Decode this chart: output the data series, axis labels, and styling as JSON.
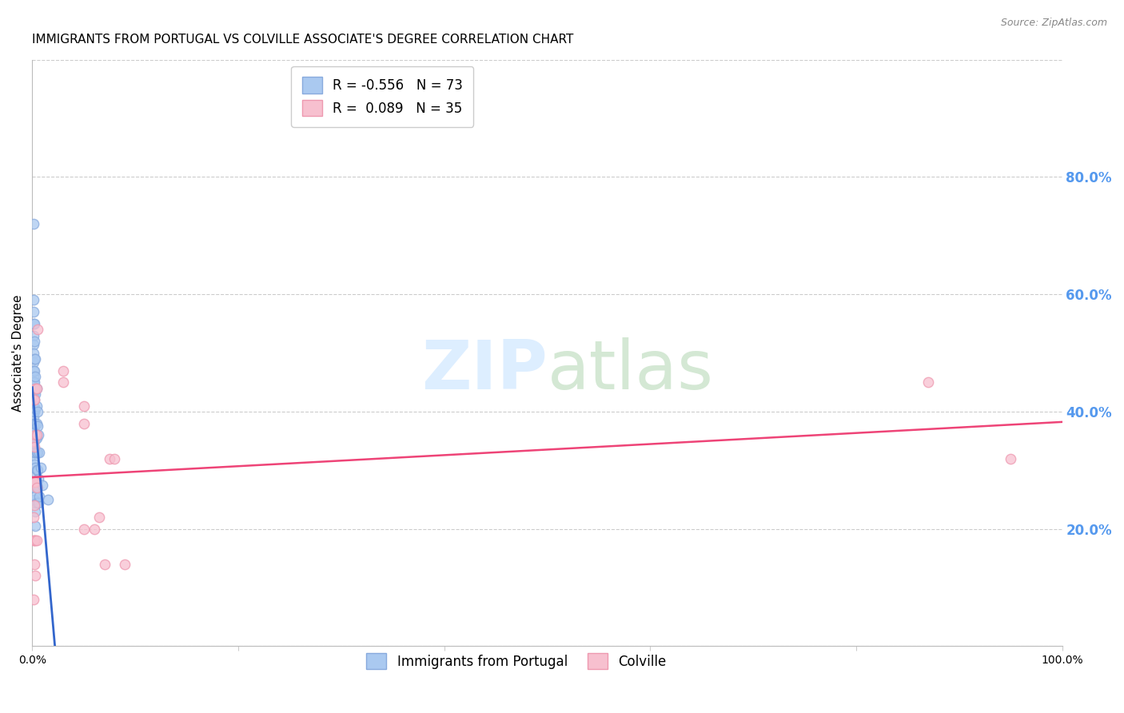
{
  "title": "IMMIGRANTS FROM PORTUGAL VS COLVILLE ASSOCIATE'S DEGREE CORRELATION CHART",
  "source": "Source: ZipAtlas.com",
  "ylabel": "Associate's Degree",
  "xlim": [
    0.0,
    100.0
  ],
  "ylim": [
    0.0,
    100.0
  ],
  "xticks": [
    0.0,
    20.0,
    40.0,
    60.0,
    80.0,
    100.0
  ],
  "yticks": [
    0.0,
    20.0,
    40.0,
    60.0,
    80.0,
    100.0
  ],
  "xtick_labels": [
    "0.0%",
    "",
    "",
    "",
    "",
    "100.0%"
  ],
  "ytick_labels_right": [
    "",
    "20.0%",
    "40.0%",
    "60.0%",
    "80.0%",
    ""
  ],
  "blue_R": -0.556,
  "blue_N": 73,
  "pink_R": 0.089,
  "pink_N": 35,
  "blue_color": "#aac9f0",
  "blue_edge_color": "#88aadd",
  "pink_color": "#f7c0cf",
  "pink_edge_color": "#ee99b0",
  "blue_line_color": "#3366cc",
  "pink_line_color": "#ee4477",
  "blue_scatter": [
    [
      0.1,
      72.0
    ],
    [
      0.1,
      59.0
    ],
    [
      0.1,
      57.0
    ],
    [
      0.1,
      55.0
    ],
    [
      0.1,
      53.0
    ],
    [
      0.1,
      51.5
    ],
    [
      0.1,
      50.0
    ],
    [
      0.1,
      48.5
    ],
    [
      0.1,
      47.0
    ],
    [
      0.1,
      46.0
    ],
    [
      0.1,
      45.0
    ],
    [
      0.1,
      44.0
    ],
    [
      0.1,
      43.0
    ],
    [
      0.1,
      42.0
    ],
    [
      0.1,
      41.0
    ],
    [
      0.1,
      40.0
    ],
    [
      0.1,
      39.0
    ],
    [
      0.1,
      38.0
    ],
    [
      0.1,
      37.0
    ],
    [
      0.1,
      36.0
    ],
    [
      0.1,
      35.0
    ],
    [
      0.1,
      34.0
    ],
    [
      0.1,
      33.0
    ],
    [
      0.1,
      32.0
    ],
    [
      0.2,
      55.0
    ],
    [
      0.2,
      52.0
    ],
    [
      0.2,
      49.0
    ],
    [
      0.2,
      47.0
    ],
    [
      0.2,
      45.0
    ],
    [
      0.2,
      43.5
    ],
    [
      0.2,
      42.0
    ],
    [
      0.2,
      40.0
    ],
    [
      0.2,
      38.0
    ],
    [
      0.2,
      36.5
    ],
    [
      0.2,
      35.0
    ],
    [
      0.2,
      33.0
    ],
    [
      0.2,
      31.0
    ],
    [
      0.2,
      29.0
    ],
    [
      0.2,
      27.0
    ],
    [
      0.2,
      25.0
    ],
    [
      0.3,
      49.0
    ],
    [
      0.3,
      46.0
    ],
    [
      0.3,
      43.0
    ],
    [
      0.3,
      40.5
    ],
    [
      0.3,
      38.0
    ],
    [
      0.3,
      35.5
    ],
    [
      0.3,
      33.0
    ],
    [
      0.3,
      30.5
    ],
    [
      0.3,
      28.0
    ],
    [
      0.3,
      25.5
    ],
    [
      0.3,
      23.0
    ],
    [
      0.3,
      20.5
    ],
    [
      0.4,
      44.0
    ],
    [
      0.4,
      41.0
    ],
    [
      0.4,
      38.0
    ],
    [
      0.4,
      35.5
    ],
    [
      0.4,
      33.0
    ],
    [
      0.4,
      30.0
    ],
    [
      0.4,
      27.5
    ],
    [
      0.4,
      24.5
    ],
    [
      0.5,
      40.0
    ],
    [
      0.5,
      37.5
    ],
    [
      0.5,
      33.0
    ],
    [
      0.5,
      30.0
    ],
    [
      0.5,
      27.0
    ],
    [
      0.6,
      36.0
    ],
    [
      0.6,
      28.5
    ],
    [
      0.6,
      24.5
    ],
    [
      0.7,
      33.0
    ],
    [
      0.7,
      25.5
    ],
    [
      0.8,
      30.5
    ],
    [
      1.0,
      27.5
    ],
    [
      1.5,
      25.0
    ]
  ],
  "pink_scatter": [
    [
      0.1,
      42.0
    ],
    [
      0.1,
      35.0
    ],
    [
      0.1,
      28.0
    ],
    [
      0.1,
      22.0
    ],
    [
      0.1,
      18.0
    ],
    [
      0.1,
      8.0
    ],
    [
      0.2,
      42.0
    ],
    [
      0.2,
      34.0
    ],
    [
      0.2,
      28.0
    ],
    [
      0.2,
      24.0
    ],
    [
      0.2,
      18.0
    ],
    [
      0.2,
      14.0
    ],
    [
      0.3,
      44.0
    ],
    [
      0.3,
      36.0
    ],
    [
      0.3,
      28.0
    ],
    [
      0.3,
      18.0
    ],
    [
      0.3,
      12.0
    ],
    [
      0.4,
      44.0
    ],
    [
      0.4,
      36.0
    ],
    [
      0.4,
      27.0
    ],
    [
      0.4,
      18.0
    ],
    [
      0.5,
      54.0
    ],
    [
      3.0,
      47.0
    ],
    [
      3.0,
      45.0
    ],
    [
      5.0,
      20.0
    ],
    [
      5.0,
      38.0
    ],
    [
      5.0,
      41.0
    ],
    [
      6.0,
      20.0
    ],
    [
      6.5,
      22.0
    ],
    [
      7.0,
      14.0
    ],
    [
      7.5,
      32.0
    ],
    [
      8.0,
      32.0
    ],
    [
      9.0,
      14.0
    ],
    [
      87.0,
      45.0
    ],
    [
      95.0,
      32.0
    ]
  ],
  "marker_size": 80,
  "title_fontsize": 11,
  "axis_label_fontsize": 11,
  "tick_fontsize": 10,
  "legend_fontsize": 12,
  "background_color": "#ffffff",
  "grid_color": "#cccccc",
  "right_tick_color": "#5599ee",
  "watermark_color": "#ddeeff",
  "watermark_text": "ZIPatlas"
}
